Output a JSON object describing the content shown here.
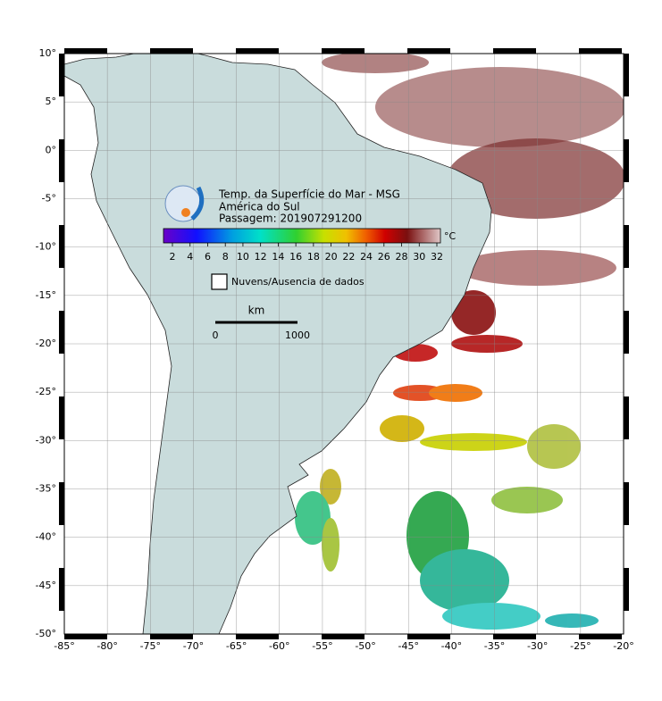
{
  "header": {
    "title": "Temp. da Superfície do Mar - MSG",
    "region": "América do Sul",
    "pass": "Passagem: 201907291200"
  },
  "colorbar": {
    "unit": "°C",
    "ticks": [
      2,
      4,
      6,
      8,
      10,
      12,
      14,
      16,
      18,
      20,
      22,
      24,
      26,
      28,
      30,
      32
    ]
  },
  "legend": {
    "no_data": "Nuvens/Ausencia de dados"
  },
  "scale": {
    "unit": "km",
    "labels": [
      "0",
      "1000"
    ]
  },
  "axes": {
    "lon_labels": [
      "-85°",
      "-80°",
      "-75°",
      "-70°",
      "-65°",
      "-60°",
      "-55°",
      "-50°",
      "-45°",
      "-40°",
      "-35°",
      "-30°",
      "-25°",
      "-20°"
    ],
    "lat_labels": [
      "10°",
      "5°",
      "0°",
      "-5°",
      "-10°",
      "-15°",
      "-20°",
      "-25°",
      "-30°",
      "-35°",
      "-40°",
      "-45°",
      "-50°"
    ]
  }
}
